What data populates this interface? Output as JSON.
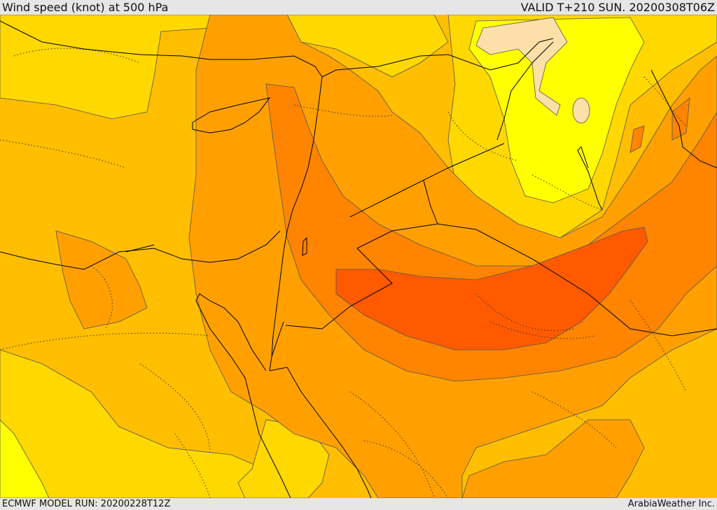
{
  "header": {
    "title": "Wind speed (knot) at 500 hPa",
    "valid": "VALID T+210 SUN. 20200308T06Z"
  },
  "footer": {
    "model_run": "ECMWF MODEL RUN: 20200228T12Z",
    "credit": "ArabiaWeather Inc."
  },
  "map": {
    "field": "wind-speed",
    "palette": {
      "lightest": "#fde0a8",
      "pale_yellow": "#ffff00",
      "yellow": "#ffd800",
      "amber": "#ffbe00",
      "light_orange": "#ffa000",
      "orange": "#ff8400",
      "dark_orange": "#ff5a00"
    },
    "coastline_color": "#000000",
    "contour_color": "#555555"
  }
}
